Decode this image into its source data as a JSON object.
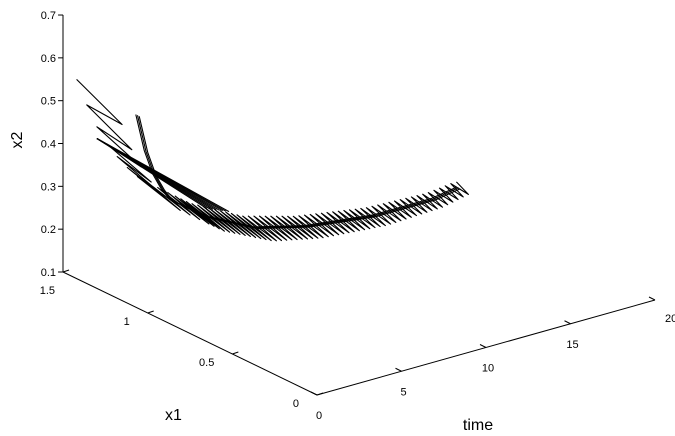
{
  "chart_data": {
    "type": "line",
    "projection": "3d",
    "title": "",
    "axes": {
      "x1": {
        "label": "x1",
        "range": [
          0,
          1.5
        ],
        "ticks": [
          0,
          0.5,
          1,
          1.5
        ],
        "tick_labels": [
          "0",
          "0.5",
          "1",
          "1.5"
        ]
      },
      "time": {
        "label": "time",
        "range": [
          0,
          20
        ],
        "ticks": [
          0,
          5,
          10,
          15,
          20
        ],
        "tick_labels": [
          "0",
          "5",
          "10",
          "15",
          "20"
        ]
      },
      "x2": {
        "label": "x2",
        "range": [
          0.1,
          0.7
        ],
        "ticks": [
          0.1,
          0.2,
          0.3,
          0.4,
          0.5,
          0.6,
          0.7
        ],
        "tick_labels": [
          "0.1",
          "0.2",
          "0.3",
          "0.4",
          "0.5",
          "0.6",
          "0.7"
        ]
      }
    },
    "grid": false,
    "legend": "none",
    "series": [
      {
        "points": [
          {
            "time": 0,
            "x1": 1.05,
            "x2": 0.55
          },
          {
            "time": 0.5,
            "x1": 1.05,
            "x2": 0.46
          },
          {
            "time": 1,
            "x1": 1.05,
            "x2": 0.4
          },
          {
            "time": 1.5,
            "x1": 1.05,
            "x2": 0.36
          },
          {
            "time": 2,
            "x1": 1.05,
            "x2": 0.33
          },
          {
            "time": 3,
            "x1": 1.05,
            "x2": 0.3
          },
          {
            "time": 4,
            "x1": 1.05,
            "x2": 0.27
          },
          {
            "time": 5,
            "x1": 1.05,
            "x2": 0.25
          },
          {
            "time": 6,
            "x1": 1.05,
            "x2": 0.23
          },
          {
            "time": 7,
            "x1": 1.05,
            "x2": 0.21
          },
          {
            "time": 8,
            "x1": 1.05,
            "x2": 0.2
          },
          {
            "time": 9,
            "x1": 1.05,
            "x2": 0.19
          },
          {
            "time": 10,
            "x1": 1.05,
            "x2": 0.18
          },
          {
            "time": 12,
            "x1": 1.05,
            "x2": 0.17
          },
          {
            "time": 14,
            "x1": 1.05,
            "x2": 0.16
          },
          {
            "time": 16,
            "x1": 1.05,
            "x2": 0.16
          },
          {
            "time": 17.5,
            "x1": 1.05,
            "x2": 0.16
          },
          {
            "time": 19,
            "x1": 1.05,
            "x2": 0.17
          }
        ]
      }
    ],
    "zigzag_start": {
      "time": 0,
      "x1": 1.3,
      "x2": 0.45
    },
    "zigzag_segments": 16,
    "zigzag_x1_amplitude": 0.12,
    "zigzag_x2_amplitude": 0.015
  }
}
